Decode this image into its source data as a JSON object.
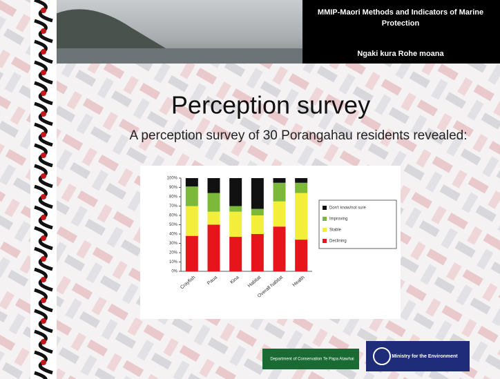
{
  "header": {
    "title": "MMIP-Maori Methods and Indicators of Marine Protection",
    "subtitle": "Ngaki kura Rohe moana"
  },
  "title": "Perception survey",
  "subtitle": "A perception survey of 30   Porangahau residents revealed:",
  "logos": [
    "Department of Conservation Te Papa Atawhai",
    "Ministry for the Environment"
  ],
  "chart_data": {
    "type": "stacked_bar",
    "categories": [
      "Crayfish",
      "Paua",
      "Kina",
      "Habitat",
      "Overall habitat",
      "Health"
    ],
    "series": [
      {
        "name": "Declining",
        "color": "#e8141b",
        "values": [
          38,
          50,
          37,
          40,
          48,
          34
        ]
      },
      {
        "name": "Stable",
        "color": "#f2ee3a",
        "values": [
          32,
          14,
          27,
          20,
          27,
          50
        ]
      },
      {
        "name": "Improving",
        "color": "#7cb83a",
        "values": [
          21,
          20,
          6,
          7,
          20,
          11
        ]
      },
      {
        "name": "Don't know/not sure",
        "color": "#111111",
        "values": [
          9,
          16,
          30,
          33,
          5,
          5
        ]
      }
    ],
    "ylim": [
      0,
      100
    ],
    "yticks": [
      {
        "value": 0,
        "label": "0%"
      },
      {
        "value": 10,
        "label": "10%"
      },
      {
        "value": 20,
        "label": "20%"
      },
      {
        "value": 30,
        "label": "30%"
      },
      {
        "value": 40,
        "label": "40%"
      },
      {
        "value": 50,
        "label": "50%"
      },
      {
        "value": 60,
        "label": "60%"
      },
      {
        "value": 70,
        "label": "70%"
      },
      {
        "value": 80,
        "label": "80%"
      },
      {
        "value": 90,
        "label": "90%"
      },
      {
        "value": 100,
        "label": "100%"
      }
    ],
    "legend": "right"
  }
}
